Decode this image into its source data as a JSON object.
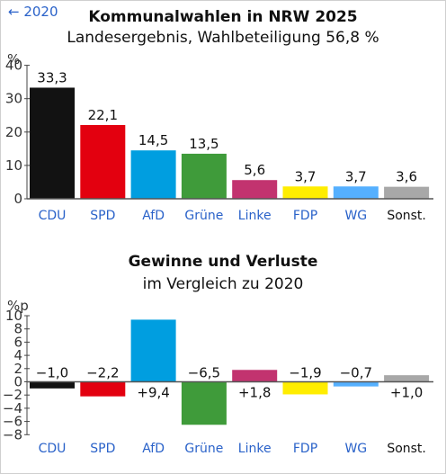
{
  "back_link": "← 2020",
  "chart_data": [
    {
      "type": "bar",
      "title": "Kommunalwahlen in NRW 2025",
      "subtitle": "Landesergebnis, Wahlbeteiligung 56,8 %",
      "ylabel": "%",
      "ylim": [
        0,
        40
      ],
      "yticks": [
        0,
        10,
        20,
        30,
        40
      ],
      "categories": [
        "CDU",
        "SPD",
        "AfD",
        "Grüne",
        "Linke",
        "FDP",
        "WG",
        "Sonst."
      ],
      "values": [
        33.3,
        22.1,
        14.5,
        13.5,
        5.6,
        3.7,
        3.7,
        3.6
      ],
      "value_labels": [
        "33,3",
        "22,1",
        "14,5",
        "13,5",
        "5,6",
        "3,7",
        "3,7",
        "3,6"
      ],
      "colors": [
        "#121212",
        "#e3000f",
        "#009ee0",
        "#3f9b3a",
        "#c2336f",
        "#ffed00",
        "#55b0ff",
        "#a8a8a8"
      ],
      "label_colors": [
        "#2a62c9",
        "#2a62c9",
        "#2a62c9",
        "#2a62c9",
        "#2a62c9",
        "#2a62c9",
        "#2a62c9",
        "#111111"
      ]
    },
    {
      "type": "bar",
      "title": "Gewinne und Verluste",
      "subtitle": "im Vergleich zu 2020",
      "ylabel": "%p",
      "ylim": [
        -8,
        10
      ],
      "yticks": [
        -8,
        -6,
        -4,
        -2,
        0,
        2,
        4,
        6,
        8,
        10
      ],
      "ytick_labels": [
        "−8",
        "−6",
        "−4",
        "−2",
        "0",
        "2",
        "4",
        "6",
        "8",
        "10"
      ],
      "categories": [
        "CDU",
        "SPD",
        "AfD",
        "Grüne",
        "Linke",
        "FDP",
        "WG",
        "Sonst."
      ],
      "values": [
        -1.0,
        -2.2,
        9.4,
        -6.5,
        1.8,
        -1.9,
        -0.7,
        1.0
      ],
      "value_labels": [
        "−1,0",
        "−2,2",
        "+9,4",
        "−6,5",
        "+1,8",
        "−1,9",
        "−0,7",
        "+1,0"
      ],
      "colors": [
        "#121212",
        "#e3000f",
        "#009ee0",
        "#3f9b3a",
        "#c2336f",
        "#ffed00",
        "#55b0ff",
        "#a8a8a8"
      ],
      "label_colors": [
        "#2a62c9",
        "#2a62c9",
        "#2a62c9",
        "#2a62c9",
        "#2a62c9",
        "#2a62c9",
        "#2a62c9",
        "#111111"
      ]
    }
  ]
}
